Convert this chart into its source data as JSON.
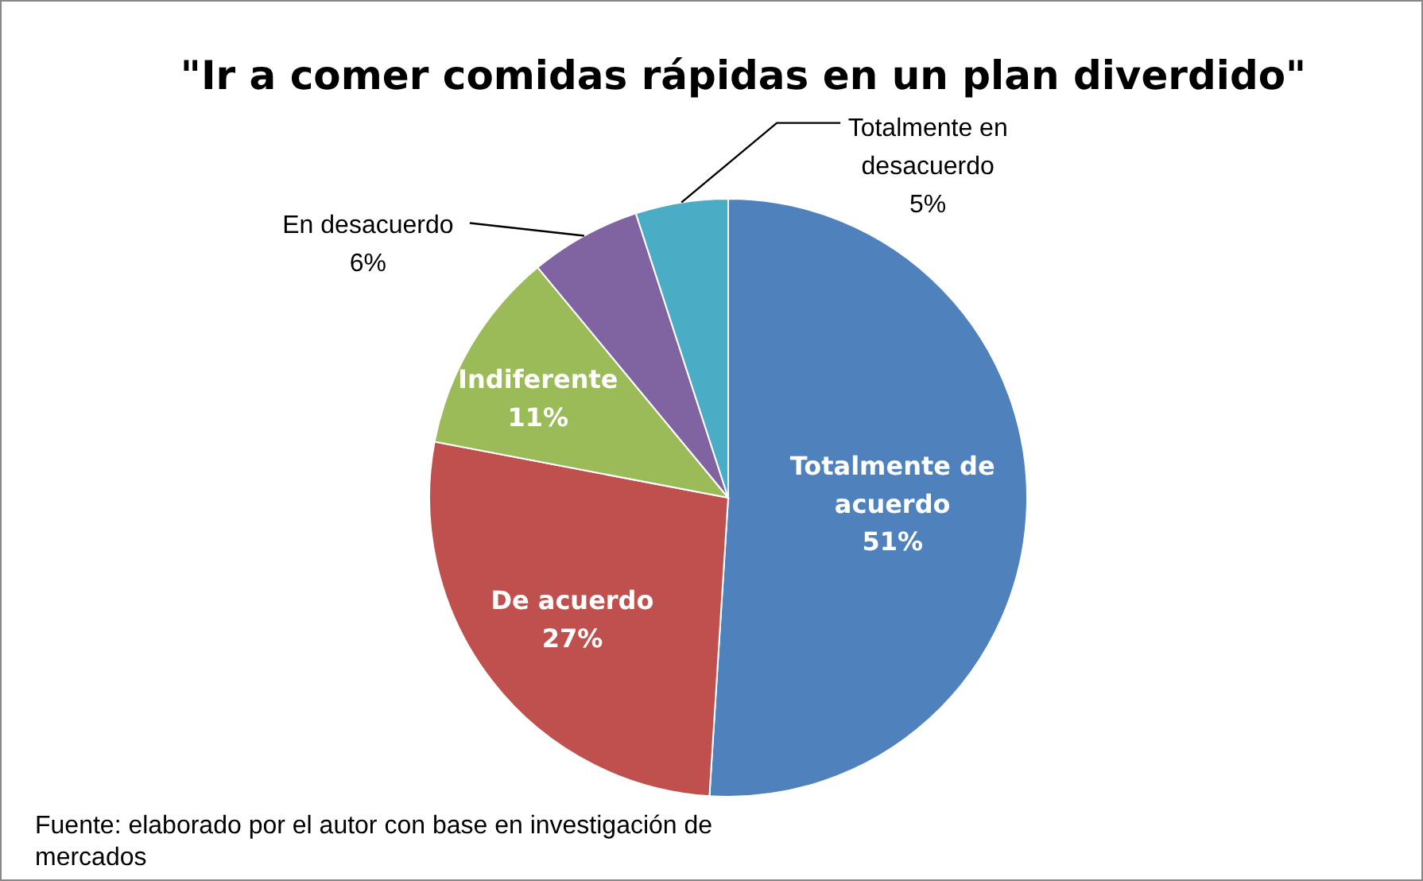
{
  "chart_data": {
    "type": "pie",
    "title": "\"Ir a comer comidas rápidas en un plan diverdido\"",
    "categories": [
      "Totalmente de acuerdo",
      "De acuerdo",
      "Indiferente",
      "En desacuerdo",
      "Totalmente en desacuerdo"
    ],
    "values": [
      51,
      27,
      11,
      6,
      5
    ],
    "colors": [
      "#4f81bd",
      "#c0504d",
      "#9bbb59",
      "#8064a2",
      "#4bacc6"
    ],
    "value_labels": [
      "51%",
      "27%",
      "11%",
      "6%",
      "5%"
    ],
    "annotations": [
      "Fuente: elaborado por el autor con base en investigación de mercados"
    ]
  }
}
